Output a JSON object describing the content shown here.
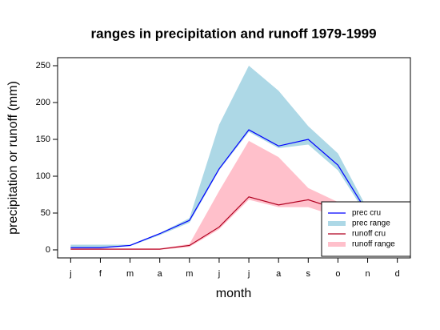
{
  "chart_data": {
    "type": "line",
    "title": "ranges in precipitation and runoff 1979-1999",
    "x_label": "month",
    "y_label": "precipitation or runoff (mm)",
    "categories": [
      "j",
      "f",
      "m",
      "a",
      "m",
      "j",
      "j",
      "a",
      "s",
      "o",
      "n",
      "d"
    ],
    "ylim": [
      -10.9,
      260.9
    ],
    "yticks": [
      0,
      50,
      100,
      150,
      200,
      250
    ],
    "legend": "bottom-right",
    "series": [
      {
        "name": "prec cru",
        "color": "#0000ff",
        "values": [
          3,
          3,
          6,
          22,
          40,
          110,
          163,
          141,
          150,
          115,
          50,
          5
        ]
      },
      {
        "name": "prec range",
        "color": "#add8e6",
        "low": [
          2,
          2,
          5,
          20,
          37,
          108,
          160,
          138,
          143,
          108,
          45,
          3
        ],
        "high": [
          7,
          7,
          7,
          23,
          43,
          170,
          250,
          216,
          168,
          131,
          55,
          8
        ]
      },
      {
        "name": "runoff cru",
        "color": "#b00020",
        "values": [
          1,
          1,
          1,
          1,
          6,
          31,
          72,
          61,
          68,
          55,
          35,
          10
        ]
      },
      {
        "name": "runoff range",
        "color": "#ffc0cb",
        "low": [
          0,
          0,
          0,
          0,
          4,
          28,
          68,
          58,
          58,
          45,
          30,
          5
        ],
        "high": [
          2,
          2,
          2,
          2,
          8,
          80,
          148,
          126,
          84,
          65,
          45,
          15
        ]
      }
    ]
  }
}
